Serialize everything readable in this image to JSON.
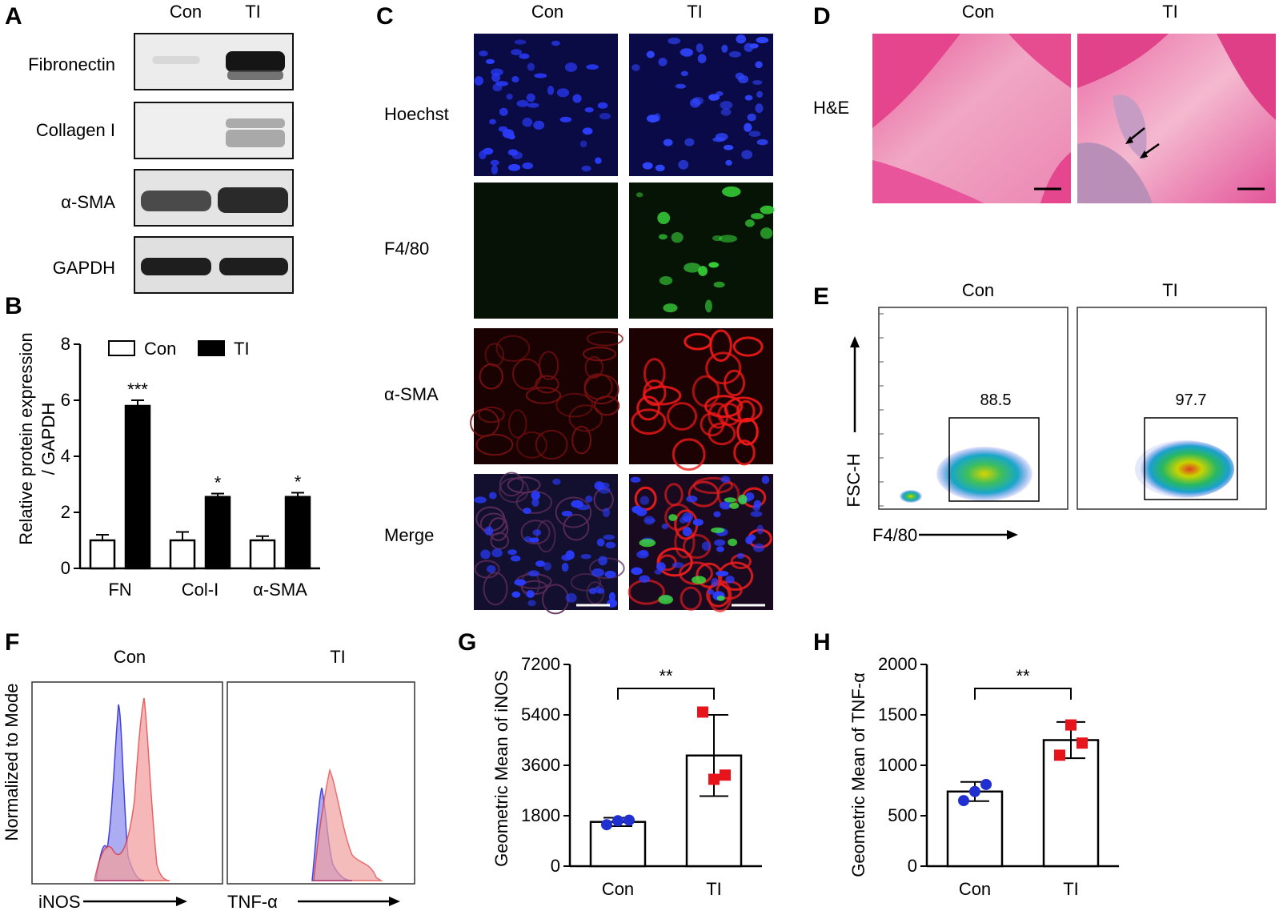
{
  "panels": {
    "A": {
      "letter": "A",
      "columns": [
        "Con",
        "TI"
      ],
      "rows": [
        "Fibronectin",
        "Collagen I",
        "α-SMA",
        "GAPDH"
      ]
    },
    "B": {
      "letter": "B",
      "chart_data": {
        "type": "bar",
        "ylabel_line1": "Relative protein expression",
        "ylabel_line2": "/ GAPDH",
        "ylim": [
          0,
          8
        ],
        "yticks": [
          "0",
          "2",
          "4",
          "6",
          "8"
        ],
        "categories": [
          "FN",
          "Col-I",
          "α-SMA"
        ],
        "legend": [
          "Con",
          "TI"
        ],
        "series": [
          {
            "name": "Con",
            "values": [
              1.0,
              1.0,
              1.0
            ],
            "errors": [
              0.2,
              0.3,
              0.15
            ],
            "color": "#ffffff"
          },
          {
            "name": "TI",
            "values": [
              5.8,
              2.55,
              2.55
            ],
            "errors": [
              0.2,
              0.12,
              0.15
            ],
            "color": "#000000"
          }
        ],
        "significance": [
          "***",
          "*",
          "*"
        ]
      }
    },
    "C": {
      "letter": "C",
      "columns": [
        "Con",
        "TI"
      ],
      "rows": [
        "Hoechst",
        "F4/80",
        "α-SMA",
        "Merge"
      ]
    },
    "D": {
      "letter": "D",
      "columns": [
        "Con",
        "TI"
      ],
      "row_label": "H&E"
    },
    "E": {
      "letter": "E",
      "columns": [
        "Con",
        "TI"
      ],
      "ylabel": "FSC-H",
      "xlabel": "F4/80",
      "gate_values": [
        "88.5",
        "97.7"
      ]
    },
    "F": {
      "letter": "F",
      "columns": [
        "Con",
        "TI"
      ],
      "ylabel": "Normalized to Mode",
      "xlabels": [
        "iNOS",
        "TNF-α"
      ]
    },
    "G": {
      "letter": "G",
      "chart_data": {
        "type": "bar",
        "ylabel": "Geometric Mean of iNOS",
        "ylim": [
          0,
          7200
        ],
        "yticks": [
          "0",
          "1800",
          "3600",
          "5400",
          "7200"
        ],
        "categories": [
          "Con",
          "TI"
        ],
        "values": [
          1580,
          3950
        ],
        "errors": [
          150,
          1450
        ],
        "points": [
          [
            1480,
            1620,
            1640
          ],
          [
            5500,
            3100,
            3250
          ]
        ],
        "point_colors": [
          "#1f2fd0",
          "#e8141b"
        ],
        "significance": "**"
      }
    },
    "H": {
      "letter": "H",
      "chart_data": {
        "type": "bar",
        "ylabel": "Geometric Mean of TNF-α",
        "ylim": [
          0,
          2000
        ],
        "yticks": [
          "0",
          "500",
          "1000",
          "1500",
          "2000"
        ],
        "categories": [
          "Con",
          "TI"
        ],
        "values": [
          740,
          1250
        ],
        "errors": [
          95,
          180
        ],
        "points": [
          [
            650,
            740,
            810
          ],
          [
            1100,
            1400,
            1220
          ]
        ],
        "point_colors": [
          "#1f2fd0",
          "#e8141b"
        ],
        "significance": "**"
      }
    }
  }
}
